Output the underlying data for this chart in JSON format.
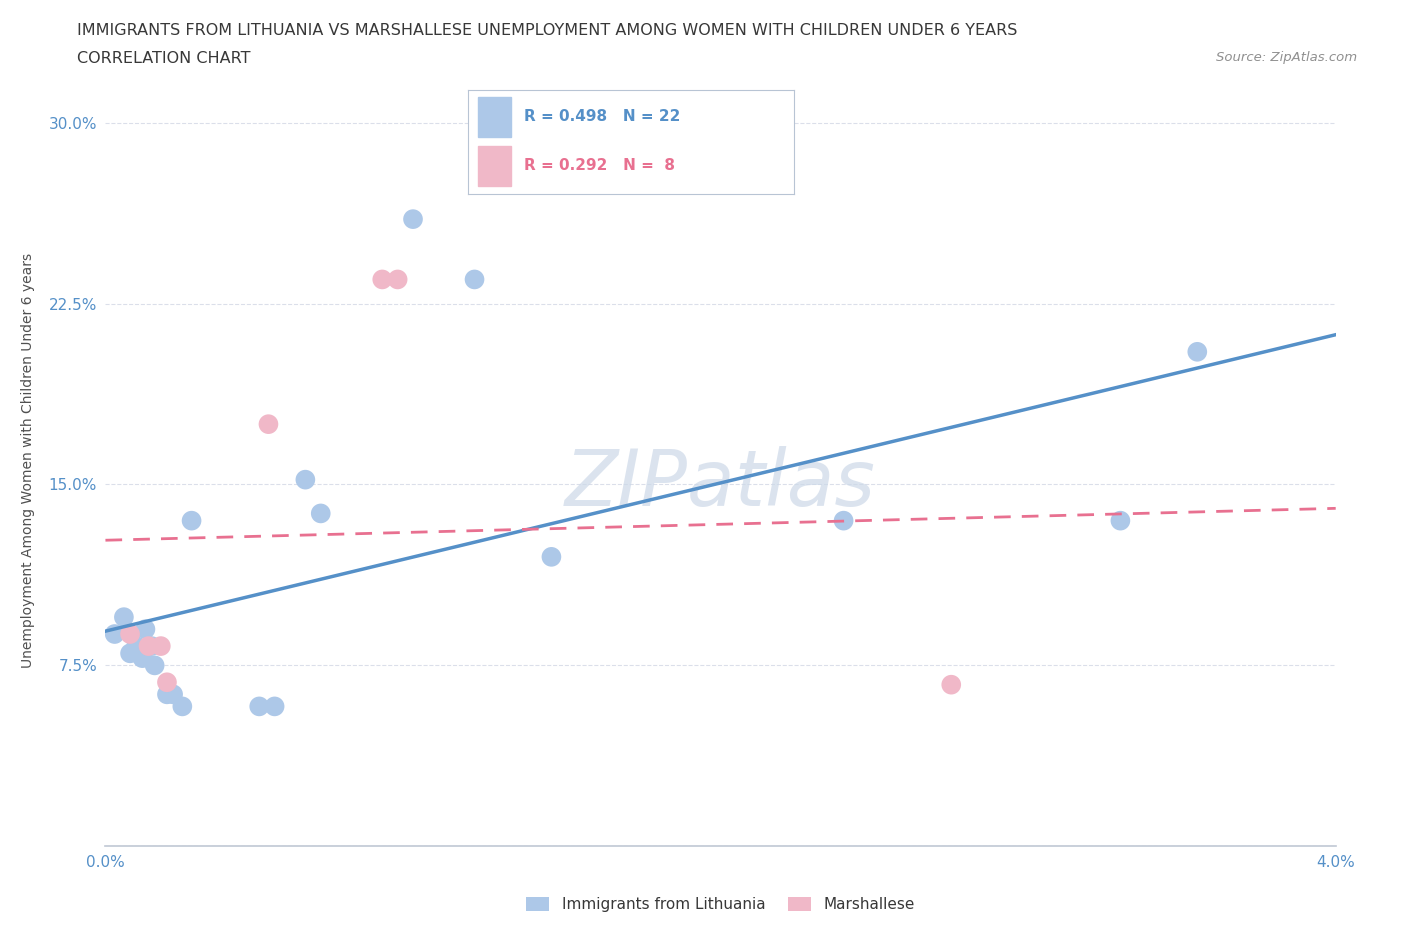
{
  "title_line1": "IMMIGRANTS FROM LITHUANIA VS MARSHALLESE UNEMPLOYMENT AMONG WOMEN WITH CHILDREN UNDER 6 YEARS",
  "title_line2": "CORRELATION CHART",
  "source": "Source: ZipAtlas.com",
  "ylabel": "Unemployment Among Women with Children Under 6 years",
  "xlim": [
    0.0,
    0.04
  ],
  "ylim": [
    0.0,
    0.32
  ],
  "xticks": [
    0.0,
    0.005,
    0.01,
    0.015,
    0.02,
    0.025,
    0.03,
    0.035,
    0.04
  ],
  "xticklabels": [
    "0.0%",
    "",
    "",
    "",
    "",
    "",
    "",
    "",
    "4.0%"
  ],
  "yticks": [
    0.0,
    0.075,
    0.15,
    0.225,
    0.3
  ],
  "yticklabels": [
    "",
    "7.5%",
    "15.0%",
    "22.5%",
    "30.0%"
  ],
  "blue_scatter_x": [
    0.0003,
    0.0006,
    0.0008,
    0.001,
    0.0012,
    0.0013,
    0.0015,
    0.0016,
    0.002,
    0.0022,
    0.0025,
    0.0028,
    0.005,
    0.0055,
    0.0065,
    0.007,
    0.01,
    0.012,
    0.0145,
    0.024,
    0.033,
    0.0355
  ],
  "blue_scatter_y": [
    0.088,
    0.095,
    0.08,
    0.083,
    0.078,
    0.09,
    0.083,
    0.075,
    0.063,
    0.063,
    0.058,
    0.135,
    0.058,
    0.058,
    0.152,
    0.138,
    0.26,
    0.235,
    0.12,
    0.135,
    0.135,
    0.205
  ],
  "pink_scatter_x": [
    0.0008,
    0.0014,
    0.0018,
    0.002,
    0.0053,
    0.009,
    0.0095,
    0.0275
  ],
  "pink_scatter_y": [
    0.088,
    0.083,
    0.083,
    0.068,
    0.175,
    0.235,
    0.235,
    0.067
  ],
  "blue_R": 0.498,
  "blue_N": 22,
  "pink_R": 0.292,
  "pink_N": 8,
  "blue_color": "#adc8e8",
  "pink_color": "#f0b8c8",
  "blue_line_color": "#5590c8",
  "pink_line_color": "#e87090",
  "grid_color": "#d8dce8",
  "watermark_color": "#ccd8e8",
  "background_color": "#ffffff"
}
